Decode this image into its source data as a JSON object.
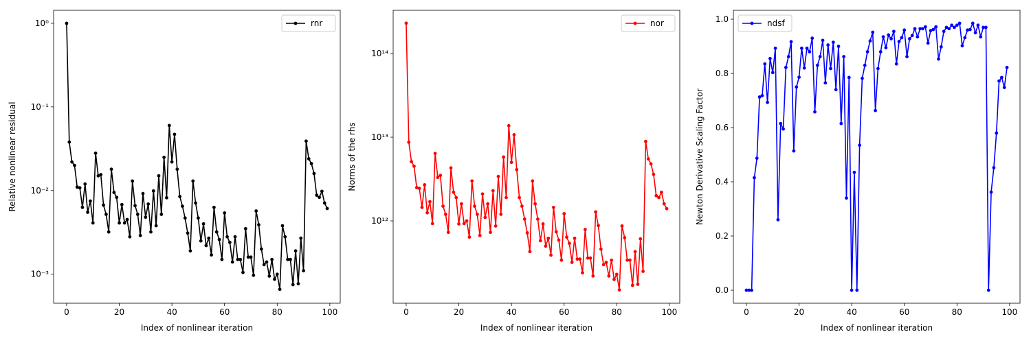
{
  "chart_data": [
    {
      "type": "line",
      "log_y": true,
      "xlabel": "Index of nonlinear iteration",
      "ylabel": "Relative nonlinear residual",
      "legend": "upper right",
      "x": [
        0,
        1,
        2,
        3,
        4,
        5,
        6,
        7,
        8,
        9,
        10,
        11,
        12,
        13,
        14,
        15,
        16,
        17,
        18,
        19,
        20,
        21,
        22,
        23,
        24,
        25,
        26,
        27,
        28,
        29,
        30,
        31,
        32,
        33,
        34,
        35,
        36,
        37,
        38,
        39,
        40,
        41,
        42,
        43,
        44,
        45,
        46,
        47,
        48,
        49,
        50,
        51,
        52,
        53,
        54,
        55,
        56,
        57,
        58,
        59,
        60,
        61,
        62,
        63,
        64,
        65,
        66,
        67,
        68,
        69,
        70,
        71,
        72,
        73,
        74,
        75,
        76,
        77,
        78,
        79,
        80,
        81,
        82,
        83,
        84,
        85,
        86,
        87,
        88,
        89,
        90,
        91,
        92,
        93,
        94,
        95,
        96,
        97,
        98,
        99
      ],
      "series": [
        {
          "name": "rnr",
          "color": "#000000",
          "values": [
            1.0,
            0.038,
            0.022,
            0.02,
            0.011,
            0.0108,
            0.0063,
            0.012,
            0.0055,
            0.0075,
            0.0041,
            0.028,
            0.015,
            0.0155,
            0.0067,
            0.0052,
            0.0032,
            0.018,
            0.0095,
            0.0083,
            0.0041,
            0.0068,
            0.0041,
            0.0045,
            0.0028,
            0.013,
            0.0066,
            0.0052,
            0.0029,
            0.0092,
            0.0048,
            0.0069,
            0.0032,
            0.0099,
            0.0038,
            0.015,
            0.0052,
            0.025,
            0.0082,
            0.06,
            0.022,
            0.047,
            0.018,
            0.0085,
            0.0065,
            0.0047,
            0.0031,
            0.0019,
            0.013,
            0.0071,
            0.0047,
            0.0025,
            0.004,
            0.0022,
            0.0027,
            0.0017,
            0.0063,
            0.0032,
            0.0026,
            0.0015,
            0.0054,
            0.0028,
            0.0024,
            0.0014,
            0.0028,
            0.0015,
            0.0015,
            0.00105,
            0.0035,
            0.0016,
            0.0016,
            0.00097,
            0.0057,
            0.0039,
            0.002,
            0.0013,
            0.0014,
            0.00095,
            0.0015,
            0.00087,
            0.001,
            0.00066,
            0.0038,
            0.0028,
            0.0015,
            0.0015,
            0.00075,
            0.0019,
            0.00077,
            0.0027,
            0.0011,
            0.039,
            0.024,
            0.021,
            0.016,
            0.0088,
            0.0083,
            0.0098,
            0.0071,
            0.0061
          ]
        }
      ],
      "xlim": [
        -4.95,
        103.95
      ],
      "xticks": [
        0,
        20,
        40,
        60,
        80,
        100
      ],
      "ylim": [
        0.00045,
        1.43
      ],
      "yticks": [
        {
          "value": 0.001,
          "label": "10⁻³"
        },
        {
          "value": 0.01,
          "label": "10⁻²"
        },
        {
          "value": 0.1,
          "label": "10⁻¹"
        },
        {
          "value": 1,
          "label": "10⁰"
        }
      ]
    },
    {
      "type": "line",
      "log_y": true,
      "xlabel": "Index of nonlinear iteration",
      "ylabel": "Norms of the rhs",
      "legend": "upper right",
      "x": [
        0,
        1,
        2,
        3,
        4,
        5,
        6,
        7,
        8,
        9,
        10,
        11,
        12,
        13,
        14,
        15,
        16,
        17,
        18,
        19,
        20,
        21,
        22,
        23,
        24,
        25,
        26,
        27,
        28,
        29,
        30,
        31,
        32,
        33,
        34,
        35,
        36,
        37,
        38,
        39,
        40,
        41,
        42,
        43,
        44,
        45,
        46,
        47,
        48,
        49,
        50,
        51,
        52,
        53,
        54,
        55,
        56,
        57,
        58,
        59,
        60,
        61,
        62,
        63,
        64,
        65,
        66,
        67,
        68,
        69,
        70,
        71,
        72,
        73,
        74,
        75,
        76,
        77,
        78,
        79,
        80,
        81,
        82,
        83,
        84,
        85,
        86,
        87,
        88,
        89,
        90,
        91,
        92,
        93,
        94,
        95,
        96,
        97,
        98,
        99
      ],
      "series": [
        {
          "name": "nor",
          "color": "#ff0000",
          "values": [
            230000000000000.0,
            8700000000000.0,
            5100000000000.0,
            4500000000000.0,
            2500000000000.0,
            2450000000000.0,
            1450000000000.0,
            2700000000000.0,
            1250000000000.0,
            1700000000000.0,
            930000000000.0,
            6400000000000.0,
            3300000000000.0,
            3500000000000.0,
            1500000000000.0,
            1200000000000.0,
            730000000000.0,
            4300000000000.0,
            2200000000000.0,
            1900000000000.0,
            920000000000.0,
            1600000000000.0,
            930000000000.0,
            1000000000000.0,
            640000000000.0,
            3000000000000.0,
            1500000000000.0,
            1200000000000.0,
            670000000000.0,
            2100000000000.0,
            1100000000000.0,
            1600000000000.0,
            730000000000.0,
            2300000000000.0,
            870000000000.0,
            3400000000000.0,
            1200000000000.0,
            5800000000000.0,
            1900000000000.0,
            13700000000000.0,
            5000000000000.0,
            10700000000000.0,
            4100000000000.0,
            1900000000000.0,
            1500000000000.0,
            1050000000000.0,
            720000000000.0,
            430000000000.0,
            3000000000000.0,
            1600000000000.0,
            1050000000000.0,
            580000000000.0,
            920000000000.0,
            500000000000.0,
            620000000000.0,
            390000000000.0,
            1450000000000.0,
            740000000000.0,
            590000000000.0,
            340000000000.0,
            1220000000000.0,
            640000000000.0,
            540000000000.0,
            320000000000.0,
            620000000000.0,
            350000000000.0,
            350000000000.0,
            240000000000.0,
            790000000000.0,
            360000000000.0,
            360000000000.0,
            220000000000.0,
            1280000000000.0,
            880000000000.0,
            460000000000.0,
            300000000000.0,
            320000000000.0,
            220000000000.0,
            340000000000.0,
            200000000000.0,
            230000000000.0,
            150000000000.0,
            870000000000.0,
            630000000000.0,
            340000000000.0,
            340000000000.0,
            170000000000.0,
            430000000000.0,
            175000000000.0,
            610000000000.0,
            250000000000.0,
            8900000000000.0,
            5500000000000.0,
            4800000000000.0,
            3600000000000.0,
            2000000000000.0,
            1900000000000.0,
            2200000000000.0,
            1600000000000.0,
            1400000000000.0
          ]
        }
      ],
      "xlim": [
        -4.95,
        103.95
      ],
      "xticks": [
        0,
        20,
        40,
        60,
        80,
        100
      ],
      "ylim": [
        104000000000.0,
        328000000000000.0
      ],
      "yticks": [
        {
          "value": 1000000000000.0,
          "label": "10¹²"
        },
        {
          "value": 10000000000000.0,
          "label": "10¹³"
        },
        {
          "value": 100000000000000.0,
          "label": "10¹⁴"
        }
      ]
    },
    {
      "type": "line",
      "log_y": false,
      "xlabel": "Index of nonlinear iteration",
      "ylabel": "Newton Derivative Scaling Factor",
      "legend": "upper left",
      "x": [
        0,
        1,
        2,
        3,
        4,
        5,
        6,
        7,
        8,
        9,
        10,
        11,
        12,
        13,
        14,
        15,
        16,
        17,
        18,
        19,
        20,
        21,
        22,
        23,
        24,
        25,
        26,
        27,
        28,
        29,
        30,
        31,
        32,
        33,
        34,
        35,
        36,
        37,
        38,
        39,
        40,
        41,
        42,
        43,
        44,
        45,
        46,
        47,
        48,
        49,
        50,
        51,
        52,
        53,
        54,
        55,
        56,
        57,
        58,
        59,
        60,
        61,
        62,
        63,
        64,
        65,
        66,
        67,
        68,
        69,
        70,
        71,
        72,
        73,
        74,
        75,
        76,
        77,
        78,
        79,
        80,
        81,
        82,
        83,
        84,
        85,
        86,
        87,
        88,
        89,
        90,
        91,
        92,
        93,
        94,
        95,
        96,
        97,
        98,
        99
      ],
      "series": [
        {
          "name": "ndsf",
          "color": "#0000ff",
          "values": [
            0,
            0,
            0,
            0.415,
            0.487,
            0.713,
            0.718,
            0.835,
            0.693,
            0.855,
            0.803,
            0.893,
            0.26,
            0.615,
            0.595,
            0.822,
            0.862,
            0.917,
            0.514,
            0.75,
            0.786,
            0.893,
            0.82,
            0.893,
            0.88,
            0.93,
            0.658,
            0.83,
            0.862,
            0.922,
            0.765,
            0.905,
            0.818,
            0.915,
            0.74,
            0.9,
            0.615,
            0.862,
            0.34,
            0.785,
            0,
            0.435,
            0,
            0.535,
            0.782,
            0.83,
            0.88,
            0.92,
            0.952,
            0.663,
            0.818,
            0.88,
            0.935,
            0.895,
            0.942,
            0.928,
            0.955,
            0.835,
            0.918,
            0.932,
            0.96,
            0.862,
            0.928,
            0.94,
            0.965,
            0.935,
            0.965,
            0.965,
            0.972,
            0.912,
            0.958,
            0.962,
            0.972,
            0.853,
            0.898,
            0.955,
            0.97,
            0.965,
            0.978,
            0.97,
            0.978,
            0.985,
            0.902,
            0.932,
            0.96,
            0.962,
            0.985,
            0.95,
            0.978,
            0.935,
            0.97,
            0.97,
            0,
            0.362,
            0.452,
            0.58,
            0.772,
            0.785,
            0.748,
            0.822
          ]
        }
      ],
      "xlim": [
        -4.95,
        103.95
      ],
      "xticks": [
        0,
        20,
        40,
        60,
        80,
        100
      ],
      "ylim": [
        -0.048,
        1.033
      ],
      "yticks": [
        {
          "value": 0,
          "label": "0.0"
        },
        0.2,
        0.4,
        0.6,
        0.8,
        {
          "value": 1,
          "label": "1.0"
        }
      ]
    }
  ]
}
